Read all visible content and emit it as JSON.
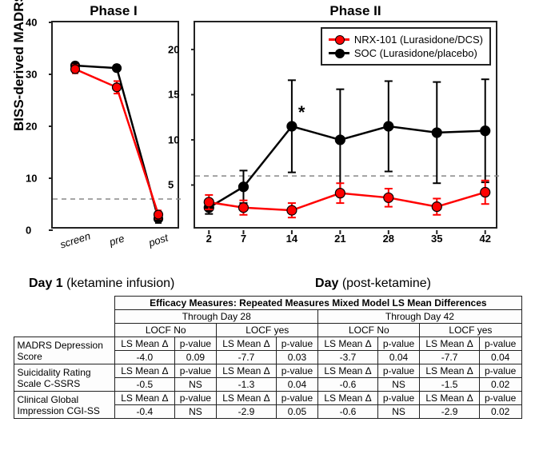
{
  "phase1": {
    "title": "Phase I",
    "ylabel": "BISS-derived MADRS (BDM)",
    "ylim": [
      0,
      40
    ],
    "yticks": [
      0,
      10,
      20,
      30,
      40
    ],
    "xlabels": [
      "screen",
      "pre",
      "post"
    ],
    "refline_y": 6,
    "series": {
      "nrx": {
        "color": "#ff0000",
        "y": [
          31.0,
          27.5,
          3.0
        ],
        "err": [
          0.8,
          1.2,
          0.8
        ]
      },
      "soc": {
        "color": "#000000",
        "y": [
          31.7,
          31.2,
          2.2
        ],
        "err": [
          0.6,
          0.6,
          0.8
        ]
      }
    }
  },
  "phase2": {
    "title": "Phase II",
    "ylim": [
      0,
      23
    ],
    "yticks": [
      5,
      10,
      15,
      20
    ],
    "xticks": [
      2,
      7,
      14,
      21,
      28,
      35,
      42
    ],
    "xlim": [
      0,
      44
    ],
    "refline_y": 6,
    "star_at": 14,
    "series": {
      "nrx": {
        "color": "#ff0000",
        "x": [
          2,
          7,
          14,
          21,
          28,
          35,
          42
        ],
        "y": [
          3.1,
          2.5,
          2.2,
          4.1,
          3.6,
          2.6,
          4.2
        ],
        "err": [
          0.8,
          0.8,
          0.8,
          1.1,
          1.0,
          0.9,
          1.3
        ]
      },
      "soc": {
        "color": "#000000",
        "x": [
          2,
          7,
          14,
          21,
          28,
          35,
          42
        ],
        "y": [
          2.5,
          4.8,
          11.5,
          10.0,
          11.5,
          10.8,
          11.0
        ],
        "err": [
          0.7,
          1.8,
          5.1,
          5.6,
          5.0,
          5.6,
          5.7
        ]
      }
    },
    "legend": {
      "nrx": "NRX-101 (Lurasidone/DCS)",
      "soc": "SOC (Lurasidone/placebo)"
    }
  },
  "day_labels": {
    "left": "Day 1",
    "left_sub": "(ketamine infusion)",
    "right": "Day",
    "right_sub": "(post-ketamine)"
  },
  "table": {
    "title": "Efficacy Measures: Repeated Measures Mixed Model LS Mean Differences",
    "groups": [
      "Through Day 28",
      "Through Day 42"
    ],
    "subgroups": [
      "LOCF No",
      "LOCF yes",
      "LOCF No",
      "LOCF yes"
    ],
    "col_pairs": [
      "LS Mean Δ",
      "p-value"
    ],
    "rows": [
      {
        "label1": "MADRS Depression",
        "label2": "Score",
        "vals": [
          "-4.0",
          "0.09",
          "-7.7",
          "0.03",
          "-3.7",
          "0.04",
          "-7.7",
          "0.04"
        ]
      },
      {
        "label1": "Suicidality Rating",
        "label2": "Scale C-SSRS",
        "vals": [
          "-0.5",
          "NS",
          "-1.3",
          "0.04",
          "-0.6",
          "NS",
          "-1.5",
          "0.02"
        ]
      },
      {
        "label1": "Clinical Global",
        "label2": "Impression CGI-SS",
        "vals": [
          "-0.4",
          "NS",
          "-2.9",
          "0.05",
          "-0.6",
          "NS",
          "-2.9",
          "0.02"
        ]
      }
    ]
  },
  "colors": {
    "nrx": "#ff0000",
    "soc": "#000000",
    "grid": "#888888",
    "border": "#222222",
    "bg": "#ffffff"
  }
}
